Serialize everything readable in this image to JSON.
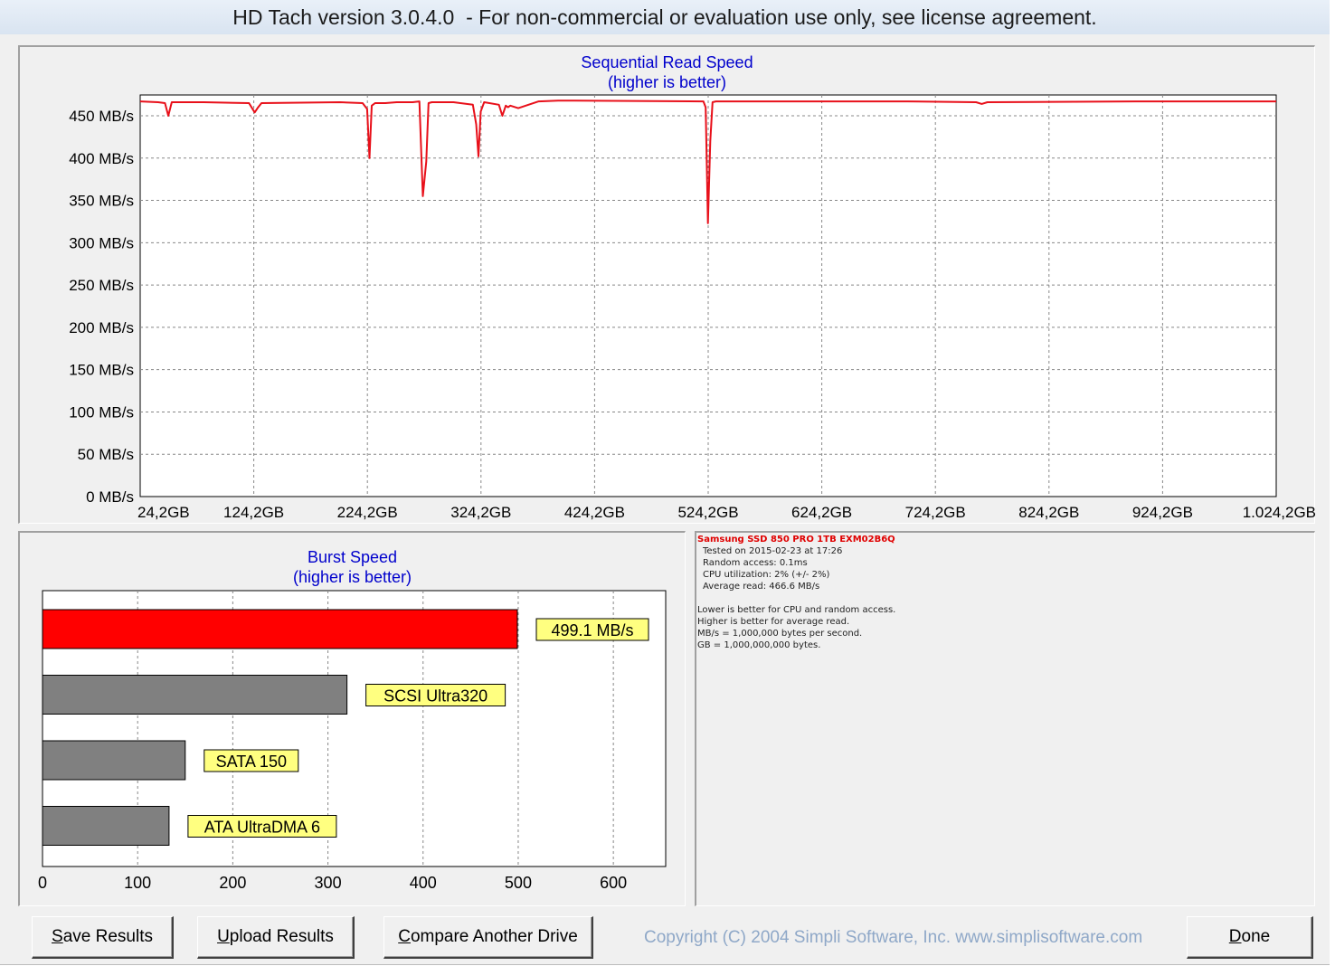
{
  "window": {
    "title": "HD Tach version 3.0.4.0  - For non-commercial or evaluation use only, see license agreement."
  },
  "seq_chart": {
    "title": "Sequential Read Speed",
    "subtitle": "(higher is better)",
    "line_color": "#e8101a"
  },
  "burst_chart": {
    "title": "Burst Speed",
    "subtitle": "(higher is better)"
  },
  "chart_data": [
    {
      "type": "line",
      "title": "Sequential Read Speed",
      "subtitle": "(higher is better)",
      "xlabel": "",
      "ylabel": "",
      "y_ticks": [
        "0 MB/s",
        "50 MB/s",
        "100 MB/s",
        "150 MB/s",
        "200 MB/s",
        "250 MB/s",
        "300 MB/s",
        "350 MB/s",
        "400 MB/s",
        "450 MB/s"
      ],
      "x_ticks": [
        "24,2GB",
        "124,2GB",
        "224,2GB",
        "324,2GB",
        "424,2GB",
        "524,2GB",
        "624,2GB",
        "724,2GB",
        "824,2GB",
        "924,2GB",
        "1.024,2GB"
      ],
      "xlim": [
        24.2,
        1024.2
      ],
      "ylim": [
        0,
        470
      ],
      "grid": true,
      "series": [
        {
          "color": "#e8101a",
          "x": [
            24.2,
            40,
            46,
            49,
            52,
            80,
            120,
            125,
            128,
            131,
            200,
            220,
            224,
            226,
            228,
            231,
            240,
            250,
            264,
            270,
            273,
            276,
            278,
            281,
            300,
            317,
            320,
            322,
            324,
            327,
            340,
            343,
            346,
            348,
            350,
            357,
            375,
            392,
            520,
            522,
            524,
            526,
            528,
            531,
            700,
            760,
            765,
            770,
            900,
            1024.2
          ],
          "y": [
            467,
            466,
            465,
            450,
            466,
            466,
            465,
            454,
            460,
            465,
            466,
            465,
            458,
            400,
            462,
            465,
            465,
            466,
            466,
            467,
            355,
            396,
            465,
            466,
            466,
            463,
            440,
            402,
            455,
            466,
            463,
            450,
            462,
            460,
            462,
            459,
            467,
            468,
            467,
            460,
            323,
            420,
            466,
            467,
            467,
            466,
            464,
            466,
            467,
            467
          ]
        }
      ]
    },
    {
      "type": "bar",
      "title": "Burst Speed",
      "subtitle": "(higher is better)",
      "orientation": "horizontal",
      "xlim": [
        0,
        655
      ],
      "x_ticks": [
        "0",
        "100",
        "200",
        "300",
        "400",
        "500",
        "600"
      ],
      "grid": true,
      "categories": [
        "499.1 MB/s",
        "SCSI Ultra320",
        "SATA 150",
        "ATA UltraDMA 6"
      ],
      "values": [
        499.1,
        320,
        150,
        133
      ],
      "colors": [
        "#ff0000",
        "#808080",
        "#808080",
        "#808080"
      ]
    }
  ],
  "info": {
    "drive": "Samsung SSD 850 PRO 1TB EXM02B6Q",
    "tested_on": "Tested on 2015-02-23 at 17:26",
    "random_access": "Random access: 0.1ms",
    "cpu": "CPU utilization: 2% (+/- 2%)",
    "average_read": "Average read: 466.6 MB/s",
    "note1": "Lower is better for CPU and random access.",
    "note2": "Higher is better for average read.",
    "note3": "MB/s = 1,000,000 bytes per second.",
    "note4": "GB = 1,000,000,000 bytes.",
    "drive_color": "#e00000"
  },
  "buttons": {
    "save_prefix": "S",
    "save_rest": "ave Results",
    "upload_prefix": "U",
    "upload_rest": "pload Results",
    "compare_prefix": "C",
    "compare_rest": "ompare Another Drive",
    "done_prefix": "D",
    "done_rest": "one"
  },
  "copyright": "Copyright (C) 2004 Simpli Software, Inc. www.simplisoftware.com"
}
